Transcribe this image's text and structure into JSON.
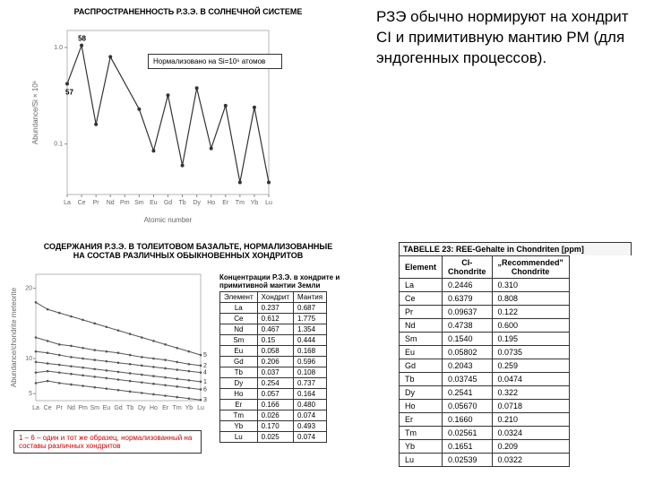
{
  "chart1": {
    "title": "РАСПРОСТРАНЕННОСТЬ Р.З.Э. В СОЛНЕЧНОЙ СИСТЕМЕ",
    "norm_label": "Нормализовано на Si=10⁶ атомов",
    "ylabel": "Abundance/Si × 10⁶",
    "xlabel": "Atomic number",
    "pt57": "57",
    "pt58": "58",
    "x_cats": [
      "La",
      "Ce",
      "Pr",
      "Nd",
      "Pm",
      "Sm",
      "Eu",
      "Gd",
      "Tb",
      "Dy",
      "Ho",
      "Er",
      "Tm",
      "Yb",
      "Lu"
    ],
    "y_ticks": [
      "0.1",
      "1.0"
    ],
    "values": [
      0.42,
      1.05,
      0.16,
      0.8,
      null,
      0.23,
      0.085,
      0.32,
      0.06,
      0.38,
      0.09,
      0.25,
      0.04,
      0.24,
      0.04
    ],
    "line_color": "#333333",
    "marker_color": "#333333",
    "axis_color": "#888888",
    "grid_color": "#dddddd",
    "font_title": 9,
    "font_tick": 7
  },
  "chart2": {
    "title": "СОДЕРЖАНИЯ Р.З.Э. В ТОЛЕИТОВОМ БАЗАЛЬТЕ, НОРМАЛИЗОВАННЫЕ\nНА СОСТАВ РАЗЛИЧНЫХ ОБЫКНОВЕННЫХ ХОНДРИТОВ",
    "ylabel": "Abundance/chondrite meteorite",
    "x_cats": [
      "La",
      "Ce",
      "Pr",
      "Nd",
      "Pm",
      "Sm",
      "Eu",
      "Gd",
      "Tb",
      "Dy",
      "Ho",
      "Er",
      "Tm",
      "Yb",
      "Lu"
    ],
    "y_ticks": [
      "5",
      "10",
      "20"
    ],
    "series": [
      {
        "label": "5",
        "color": "#555",
        "vals": [
          18,
          17,
          16.5,
          16,
          15.5,
          15,
          14.5,
          14,
          13.5,
          13,
          12.5,
          12,
          11.5,
          11,
          10.5
        ]
      },
      {
        "label": "2",
        "color": "#555",
        "vals": [
          13,
          12.5,
          12,
          11.8,
          11.5,
          11.2,
          11,
          10.8,
          10.5,
          10.2,
          10,
          9.8,
          9.5,
          9.2,
          9
        ]
      },
      {
        "label": "4",
        "color": "#555",
        "vals": [
          11,
          10.8,
          10.5,
          10.2,
          10,
          9.8,
          9.6,
          9.4,
          9.2,
          9,
          8.8,
          8.6,
          8.4,
          8.2,
          8
        ]
      },
      {
        "label": "1",
        "color": "#555",
        "vals": [
          9.5,
          9.3,
          9.1,
          8.9,
          8.7,
          8.5,
          8.3,
          8.1,
          7.9,
          7.7,
          7.5,
          7.3,
          7.1,
          6.9,
          6.7
        ]
      },
      {
        "label": "6",
        "color": "#555",
        "vals": [
          8,
          8.2,
          8,
          7.8,
          7.6,
          7.4,
          7.2,
          7,
          6.8,
          6.6,
          6.4,
          6.2,
          6,
          5.8,
          5.6
        ]
      },
      {
        "label": "3",
        "color": "#555",
        "vals": [
          6.5,
          6.8,
          6.5,
          6.3,
          6.1,
          5.9,
          5.7,
          5.5,
          5.3,
          5.1,
          4.9,
          4.7,
          4.5,
          4.3,
          4.1
        ]
      }
    ],
    "caption": "1 – 6 – один и тот же образец, нормализованный на составы различных хондритов",
    "ymin": 4,
    "ymax": 22
  },
  "table1": {
    "title": "Концентрации Р.З.Э. в хондрите и\nпримитивной мантии Земли",
    "headers": [
      "Элемент",
      "Хондрит",
      "Мантия"
    ],
    "rows": [
      [
        "La",
        "0.237",
        "0.687"
      ],
      [
        "Ce",
        "0.612",
        "1.775"
      ],
      [
        "Nd",
        "0.467",
        "1.354"
      ],
      [
        "Sm",
        "0.15",
        "0.444"
      ],
      [
        "Eu",
        "0.058",
        "0.168"
      ],
      [
        "Gd",
        "0.206",
        "0.596"
      ],
      [
        "Tb",
        "0.037",
        "0.108"
      ],
      [
        "Dy",
        "0.254",
        "0.737"
      ],
      [
        "Ho",
        "0.057",
        "0.164"
      ],
      [
        "Er",
        "0.166",
        "0.480"
      ],
      [
        "Tm",
        "0.026",
        "0.074"
      ],
      [
        "Yb",
        "0.170",
        "0.493"
      ],
      [
        "Lu",
        "0.025",
        "0.074"
      ]
    ]
  },
  "table2": {
    "caption": "TABELLE 23:  REE-Gehalte in Chondriten [ppm]",
    "headers": [
      "Element",
      "CI-\nChondrite",
      "„Recommended\"\nChondrite"
    ],
    "rows": [
      [
        "La",
        "0.2446",
        "0.310"
      ],
      [
        "Ce",
        "0.6379",
        "0.808"
      ],
      [
        "Pr",
        "0.09637",
        "0.122"
      ],
      [
        "Nd",
        "0.4738",
        "0.600"
      ],
      [
        "Sm",
        "0.1540",
        "0.195"
      ],
      [
        "Eu",
        "0.05802",
        "0.0735"
      ],
      [
        "Gd",
        "0.2043",
        "0.259"
      ],
      [
        "Tb",
        "0.03745",
        "0.0474"
      ],
      [
        "Dy",
        "0.2541",
        "0.322"
      ],
      [
        "Ho",
        "0.05670",
        "0.0718"
      ],
      [
        "Er",
        "0.1660",
        "0.210"
      ],
      [
        "Tm",
        "0.02561",
        "0.0324"
      ],
      [
        "Yb",
        "0.1651",
        "0.209"
      ],
      [
        "Lu",
        "0.02539",
        "0.0322"
      ]
    ]
  },
  "body_text": "РЗЭ обычно нормируют на хондрит СI и примитивную мантию PM (для эндогенных процессов)."
}
